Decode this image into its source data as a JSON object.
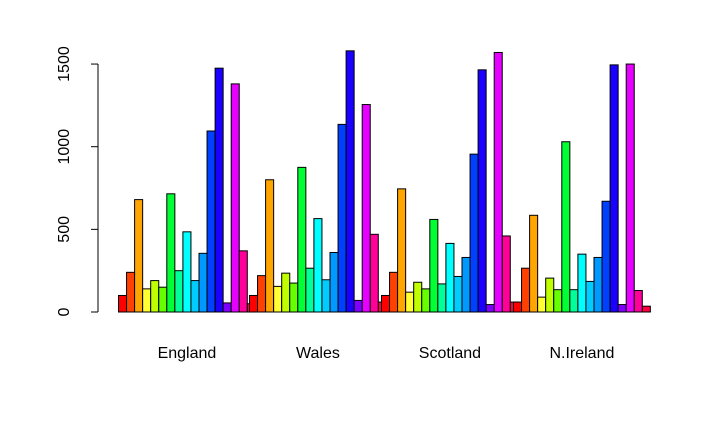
{
  "chart_data": {
    "type": "bar",
    "layout": "grouped",
    "title": "",
    "xlabel": "",
    "ylabel": "",
    "ylim": [
      0,
      1620
    ],
    "yticks": [
      0,
      500,
      1000,
      1500
    ],
    "grid": false,
    "legend": false,
    "categories": [
      "England",
      "Wales",
      "Scotland",
      "N.Ireland"
    ],
    "series": [
      {
        "color": "#FF0000",
        "values": [
          100,
          100,
          100,
          60
        ]
      },
      {
        "color": "#FF4000",
        "values": [
          240,
          220,
          240,
          265
        ]
      },
      {
        "color": "#FFA500",
        "values": [
          680,
          800,
          745,
          585
        ]
      },
      {
        "color": "#FFFF33",
        "values": [
          140,
          155,
          120,
          90
        ]
      },
      {
        "color": "#BFFF00",
        "values": [
          190,
          235,
          180,
          205
        ]
      },
      {
        "color": "#66FF00",
        "values": [
          150,
          175,
          140,
          135
        ]
      },
      {
        "color": "#00FF33",
        "values": [
          715,
          875,
          560,
          1030
        ]
      },
      {
        "color": "#00FF99",
        "values": [
          250,
          265,
          170,
          135
        ]
      },
      {
        "color": "#00FFFF",
        "values": [
          485,
          565,
          415,
          350
        ]
      },
      {
        "color": "#00CCFF",
        "values": [
          190,
          195,
          215,
          185
        ]
      },
      {
        "color": "#0099FF",
        "values": [
          355,
          360,
          330,
          330
        ]
      },
      {
        "color": "#0040FF",
        "values": [
          1095,
          1135,
          955,
          670
        ]
      },
      {
        "color": "#1A00FF",
        "values": [
          1475,
          1580,
          1465,
          1495
        ]
      },
      {
        "color": "#8000FF",
        "values": [
          55,
          70,
          45,
          45
        ]
      },
      {
        "color": "#E600FF",
        "values": [
          1380,
          1255,
          1570,
          1500
        ]
      },
      {
        "color": "#FF0099",
        "values": [
          370,
          470,
          460,
          130
        ]
      },
      {
        "color": "#FF0040",
        "values": [
          50,
          60,
          60,
          35
        ]
      }
    ]
  }
}
